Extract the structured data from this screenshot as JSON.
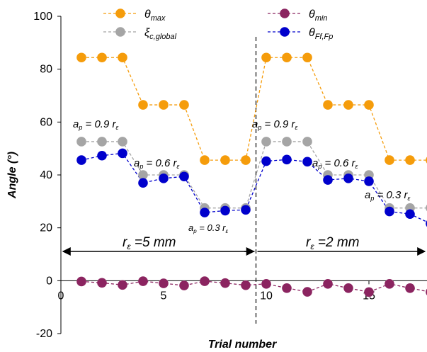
{
  "chart_data": {
    "type": "line",
    "title": "",
    "xlabel": "Trial number",
    "ylabel": "Angle (°)",
    "xlim": [
      0,
      18
    ],
    "ylim": [
      -20,
      100
    ],
    "xticks": [
      0,
      5,
      10,
      15
    ],
    "yticks": [
      -20,
      0,
      20,
      40,
      60,
      80,
      100
    ],
    "grid": false,
    "legend_position": "top",
    "x": [
      1,
      2,
      3,
      4,
      5,
      6,
      7,
      8,
      9,
      10,
      11,
      12,
      13,
      14,
      15,
      16,
      17,
      18
    ],
    "series": [
      {
        "name": "θmax",
        "symbol": "θ",
        "subscript": "max",
        "color": "#F59C0B",
        "values": [
          84.4,
          84.4,
          84.4,
          66.5,
          66.5,
          66.5,
          45.6,
          45.6,
          45.6,
          84.4,
          84.4,
          84.4,
          66.5,
          66.5,
          66.5,
          45.6,
          45.6,
          45.6
        ]
      },
      {
        "name": "θmin",
        "symbol": "θ",
        "subscript": "min",
        "color": "#8B2460",
        "values": [
          -0.3,
          -0.8,
          -1.6,
          -0.2,
          -1.0,
          -1.8,
          -0.2,
          -0.9,
          -1.7,
          -1.2,
          -2.8,
          -4.2,
          -1.2,
          -2.8,
          -4.3,
          -1.2,
          -2.8,
          -4.3
        ]
      },
      {
        "name": "ξc,global",
        "symbol": "ξ",
        "subscript": "c,global",
        "color": "#A5A5A5",
        "values": [
          52.6,
          52.6,
          52.6,
          40.0,
          40.0,
          40.0,
          27.5,
          27.5,
          27.5,
          52.6,
          52.6,
          52.6,
          40.0,
          40.0,
          40.0,
          27.5,
          27.5,
          27.5
        ]
      },
      {
        "name": "θFf,Fp",
        "symbol": "θ",
        "subscript": "Ff,Fp",
        "color": "#0000CC",
        "values": [
          45.6,
          47.3,
          48.2,
          37.0,
          38.7,
          39.4,
          25.8,
          26.5,
          26.8,
          45.2,
          45.8,
          45.0,
          38.1,
          38.7,
          37.6,
          26.2,
          25.2,
          21.6
        ]
      }
    ],
    "divider_x": 9.5,
    "annotations": [
      {
        "text": "a",
        "sub": "p",
        "rest": " = 0.9 r",
        "tail": "ε"
      },
      {
        "text": "a",
        "sub": "p",
        "rest": " = 0.6 r",
        "tail": "ε"
      },
      {
        "text": "a",
        "sub": "p",
        "rest": " = 0.3 r",
        "tail": "ε"
      },
      {
        "text": "a",
        "sub": "p",
        "rest": " = 0.9 r",
        "tail": "ε"
      },
      {
        "text": "a",
        "sub": "p",
        "rest": " = 0.6 r",
        "tail": "ε"
      },
      {
        "text": "a",
        "sub": "p",
        "rest": " = 0.3 r",
        "tail": "ε"
      }
    ],
    "region_labels": [
      {
        "main": "r",
        "sub": "ε",
        "rest": " =5 mm"
      },
      {
        "main": "r",
        "sub": "ε",
        "rest": " =2 mm"
      }
    ]
  }
}
